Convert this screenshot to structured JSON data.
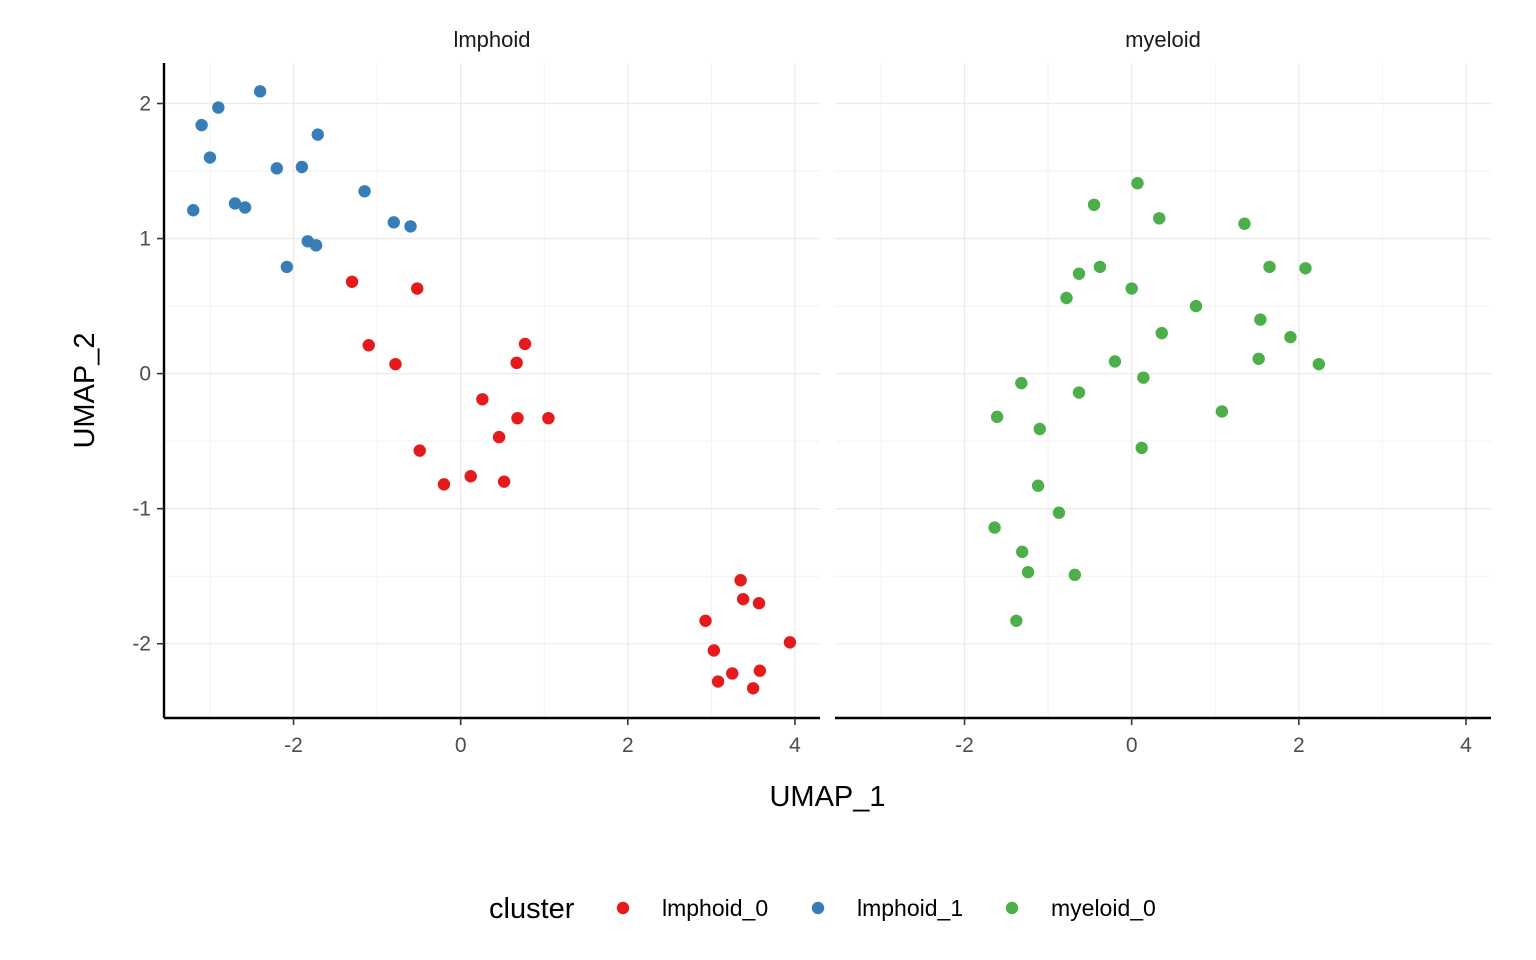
{
  "chart_data": {
    "type": "scatter",
    "xlabel": "UMAP_1",
    "ylabel": "UMAP_2",
    "xlim": [
      -3.55,
      4.3
    ],
    "ylim": [
      -2.55,
      2.3
    ],
    "x_ticks": [
      -2,
      0,
      2,
      4
    ],
    "y_ticks": [
      -2,
      -1,
      0,
      1,
      2
    ],
    "x_tick_labels": [
      "-2",
      "0",
      "2",
      "4"
    ],
    "y_tick_labels": [
      "-2",
      "-1",
      "0",
      "1",
      "2"
    ],
    "grid": true,
    "facet_by": "compartment",
    "facets": [
      {
        "label": "lmphoid"
      },
      {
        "label": "myeloid"
      }
    ],
    "legend": {
      "title": "cluster",
      "position": "bottom",
      "items": [
        {
          "label": "lmphoid_0",
          "color": "#E41A1C"
        },
        {
          "label": "lmphoid_1",
          "color": "#377EB8"
        },
        {
          "label": "myeloid_0",
          "color": "#4DAF4A"
        }
      ]
    },
    "series": [
      {
        "name": "lmphoid_0",
        "facet": 0,
        "color": "#E41A1C",
        "points": [
          [
            -1.3,
            0.68
          ],
          [
            -0.52,
            0.63
          ],
          [
            -1.1,
            0.21
          ],
          [
            -0.78,
            0.07
          ],
          [
            0.77,
            0.22
          ],
          [
            0.67,
            0.08
          ],
          [
            0.26,
            -0.19
          ],
          [
            0.68,
            -0.33
          ],
          [
            1.05,
            -0.33
          ],
          [
            0.46,
            -0.47
          ],
          [
            -0.49,
            -0.57
          ],
          [
            0.12,
            -0.76
          ],
          [
            -0.2,
            -0.82
          ],
          [
            0.52,
            -0.8
          ],
          [
            3.35,
            -1.53
          ],
          [
            3.38,
            -1.67
          ],
          [
            3.57,
            -1.7
          ],
          [
            2.93,
            -1.83
          ],
          [
            3.94,
            -1.99
          ],
          [
            3.03,
            -2.05
          ],
          [
            3.58,
            -2.2
          ],
          [
            3.25,
            -2.22
          ],
          [
            3.08,
            -2.28
          ],
          [
            3.5,
            -2.33
          ]
        ]
      },
      {
        "name": "lmphoid_1",
        "facet": 0,
        "color": "#377EB8",
        "points": [
          [
            -2.4,
            2.09
          ],
          [
            -2.9,
            1.97
          ],
          [
            -3.1,
            1.84
          ],
          [
            -1.71,
            1.77
          ],
          [
            -3.0,
            1.6
          ],
          [
            -2.2,
            1.52
          ],
          [
            -1.9,
            1.53
          ],
          [
            -1.15,
            1.35
          ],
          [
            -2.7,
            1.26
          ],
          [
            -2.58,
            1.23
          ],
          [
            -3.2,
            1.21
          ],
          [
            -0.8,
            1.12
          ],
          [
            -0.6,
            1.09
          ],
          [
            -1.83,
            0.98
          ],
          [
            -1.73,
            0.95
          ],
          [
            -2.08,
            0.79
          ]
        ]
      },
      {
        "name": "myeloid_0",
        "facet": 1,
        "color": "#4DAF4A",
        "points": [
          [
            0.07,
            1.41
          ],
          [
            -0.45,
            1.25
          ],
          [
            0.33,
            1.15
          ],
          [
            1.35,
            1.11
          ],
          [
            -0.38,
            0.79
          ],
          [
            -0.63,
            0.74
          ],
          [
            1.65,
            0.79
          ],
          [
            2.08,
            0.78
          ],
          [
            0.0,
            0.63
          ],
          [
            -0.78,
            0.56
          ],
          [
            0.77,
            0.5
          ],
          [
            1.54,
            0.4
          ],
          [
            0.36,
            0.3
          ],
          [
            1.9,
            0.27
          ],
          [
            -0.2,
            0.09
          ],
          [
            1.52,
            0.11
          ],
          [
            2.24,
            0.07
          ],
          [
            0.14,
            -0.03
          ],
          [
            -1.32,
            -0.07
          ],
          [
            -0.63,
            -0.14
          ],
          [
            1.08,
            -0.28
          ],
          [
            -1.61,
            -0.32
          ],
          [
            -1.1,
            -0.41
          ],
          [
            0.12,
            -0.55
          ],
          [
            -1.12,
            -0.83
          ],
          [
            -0.87,
            -1.03
          ],
          [
            -1.64,
            -1.14
          ],
          [
            -1.31,
            -1.32
          ],
          [
            -1.24,
            -1.47
          ],
          [
            -0.68,
            -1.49
          ],
          [
            -1.38,
            -1.83
          ]
        ]
      }
    ]
  }
}
